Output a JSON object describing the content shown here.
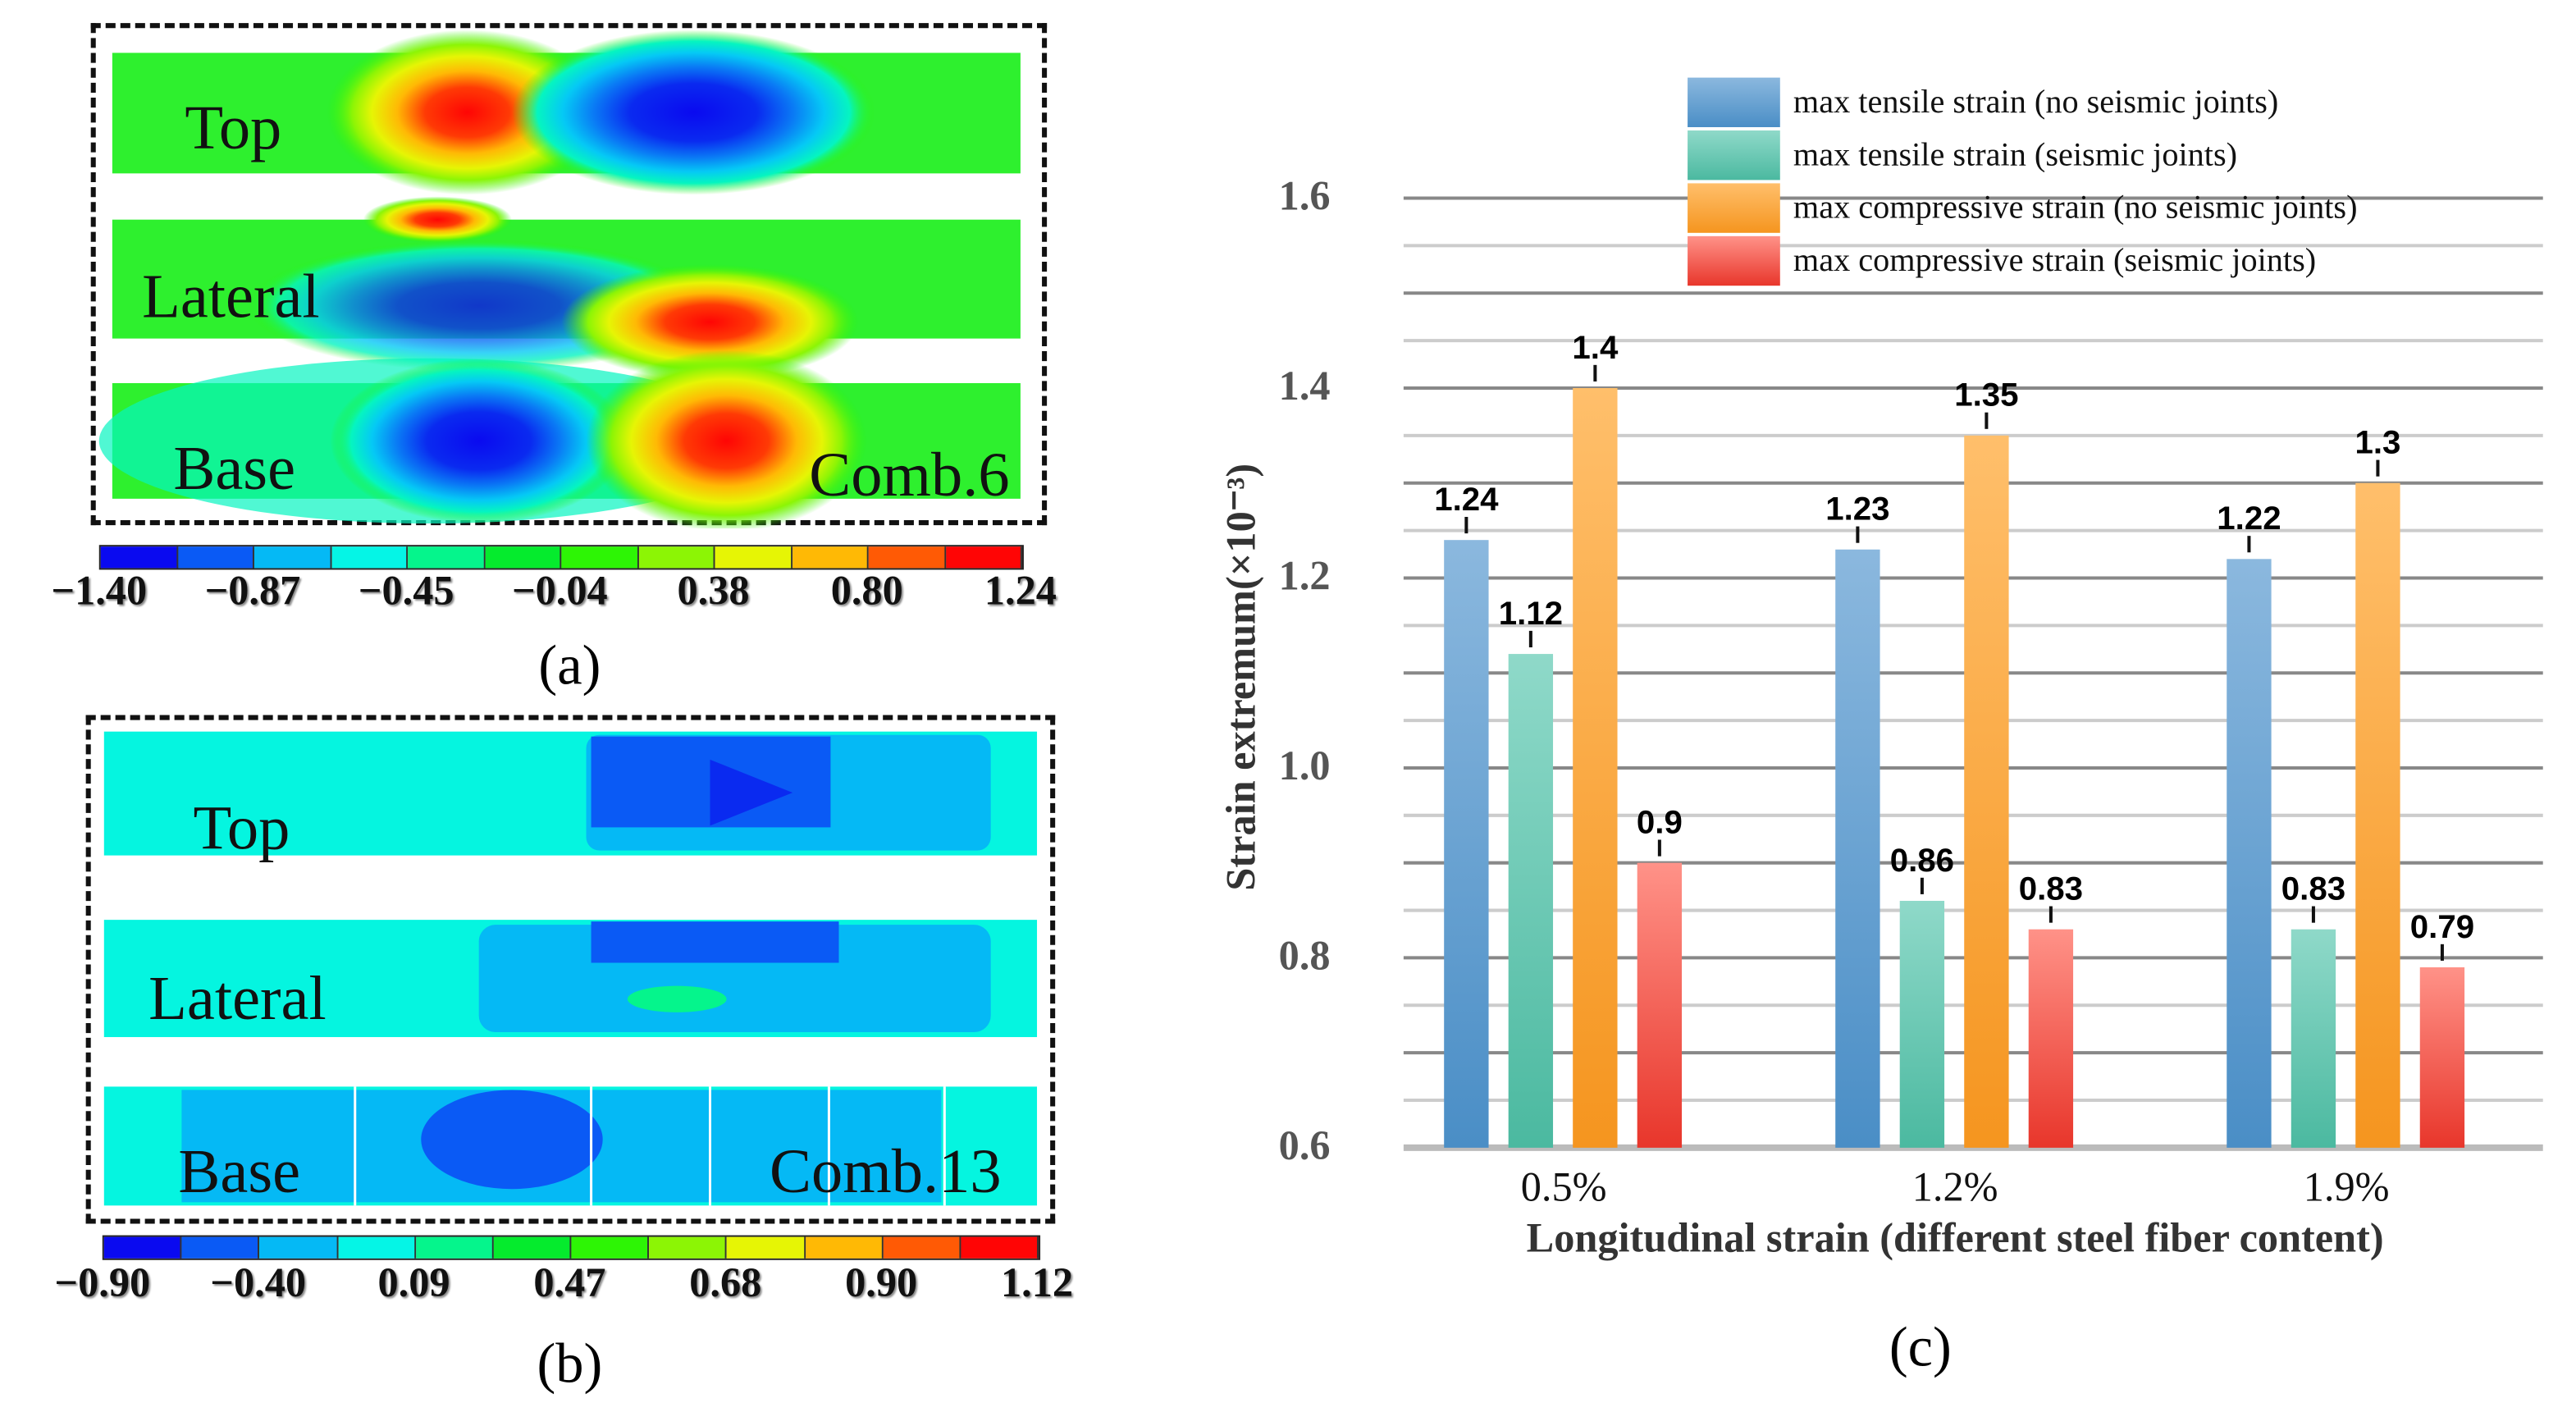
{
  "panel_a": {
    "caption": "(a)",
    "strips": [
      "Top",
      "Lateral",
      "Base"
    ],
    "combination": "Comb.6",
    "colorbar_ticks": [
      "−1.40",
      "−0.87",
      "−0.45",
      "−0.04",
      "0.38",
      "0.80",
      "1.24"
    ],
    "colorbar_colors": [
      "#0a0af0",
      "#0a5af5",
      "#05b9f5",
      "#05f5e6",
      "#05f58c",
      "#05eb2d",
      "#2df505",
      "#8cf505",
      "#e6f505",
      "#ffb905",
      "#ff5a05",
      "#ff0505"
    ]
  },
  "panel_b": {
    "caption": "(b)",
    "strips": [
      "Top",
      "Lateral",
      "Base"
    ],
    "combination": "Comb.13",
    "colorbar_ticks": [
      "−0.90",
      "−0.40",
      "0.09",
      "0.47",
      "0.68",
      "0.90",
      "1.12"
    ],
    "colorbar_colors": [
      "#0a0af0",
      "#0a5af5",
      "#05b9f5",
      "#05f5e6",
      "#05f58c",
      "#05eb2d",
      "#2df505",
      "#8cf505",
      "#e6f505",
      "#ffb905",
      "#ff5a05",
      "#ff0505"
    ]
  },
  "panel_c": {
    "caption": "(c)"
  },
  "chart_data": {
    "type": "bar",
    "title": "",
    "xlabel": "Longitudinal strain (different steel fiber content)",
    "ylabel": "Strain extremum(×10⁻³)",
    "ylim": [
      0.6,
      1.6
    ],
    "yticks": [
      "0.6",
      "0.8",
      "1.0",
      "1.2",
      "1.4",
      "1.6"
    ],
    "grid": true,
    "legend_position": "top-right",
    "categories": [
      "0.5%",
      "1.2%",
      "1.9%"
    ],
    "series": [
      {
        "name": "max tensile strain (no seismic joints)",
        "values": [
          1.24,
          1.23,
          1.22
        ],
        "labels": [
          "1.24",
          "1.23",
          "1.22"
        ],
        "color_top": "#8bb8de",
        "color_bottom": "#4a8ec6"
      },
      {
        "name": "max tensile strain (seismic joints)",
        "values": [
          1.12,
          0.86,
          0.83
        ],
        "labels": [
          "1.12",
          "0.86",
          "0.83"
        ],
        "color_top": "#8fd9c9",
        "color_bottom": "#4bb9a0"
      },
      {
        "name": "max compressive strain (no seismic joints)",
        "values": [
          1.4,
          1.35,
          1.3
        ],
        "labels": [
          "1.4",
          "1.35",
          "1.3"
        ],
        "color_top": "#ffbf6b",
        "color_bottom": "#f5951f"
      },
      {
        "name": "max compressive strain (seismic joints)",
        "values": [
          0.9,
          0.83,
          0.79
        ],
        "labels": [
          "0.9",
          "0.83",
          "0.79"
        ],
        "color_top": "#ff9288",
        "color_bottom": "#e8362b"
      }
    ]
  }
}
